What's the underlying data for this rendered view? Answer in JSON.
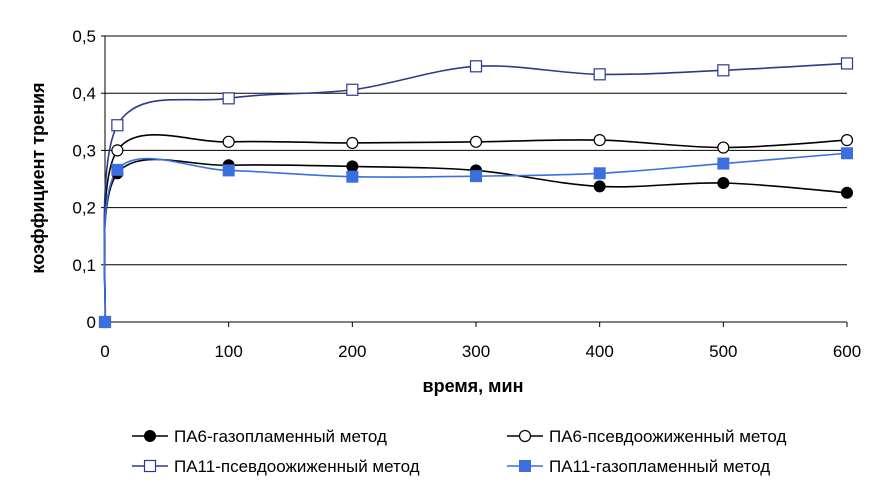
{
  "chart_data": {
    "type": "line",
    "xlabel": "время, мин",
    "ylabel": "коэффициент трения",
    "xlim": [
      0,
      600
    ],
    "ylim": [
      0,
      0.5
    ],
    "x_ticks": [
      "0",
      "100",
      "200",
      "300",
      "400",
      "500",
      "600"
    ],
    "y_ticks": [
      "0",
      "0,1",
      "0,2",
      "0,3",
      "0,4",
      "0,5"
    ],
    "grid": "horizontal",
    "legend_position": "bottom",
    "series": [
      {
        "name": "ПА6-газопламенный метод",
        "color": "#000000",
        "marker": "filled-circle",
        "x": [
          0,
          10,
          100,
          200,
          300,
          400,
          500,
          600
        ],
        "y": [
          0,
          0.26,
          0.274,
          0.272,
          0.265,
          0.237,
          0.243,
          0.226
        ]
      },
      {
        "name": "ПА6-псевдоожиженный метод",
        "color": "#000000",
        "marker": "open-circle",
        "x": [
          0,
          10,
          100,
          200,
          300,
          400,
          500,
          600
        ],
        "y": [
          0,
          0.3,
          0.315,
          0.313,
          0.315,
          0.318,
          0.305,
          0.318
        ]
      },
      {
        "name": "ПА11-псевдоожиженный метод",
        "color": "#2b3a8f",
        "marker": "open-square",
        "x": [
          0,
          10,
          100,
          200,
          300,
          400,
          500,
          600
        ],
        "y": [
          0,
          0.344,
          0.391,
          0.406,
          0.447,
          0.433,
          0.44,
          0.452
        ]
      },
      {
        "name": "ПА11-газопламенный метод",
        "color": "#3b6fe0",
        "marker": "filled-square",
        "x": [
          0,
          10,
          100,
          200,
          300,
          400,
          500,
          600
        ],
        "y": [
          0,
          0.266,
          0.265,
          0.254,
          0.255,
          0.26,
          0.277,
          0.295
        ]
      }
    ]
  }
}
